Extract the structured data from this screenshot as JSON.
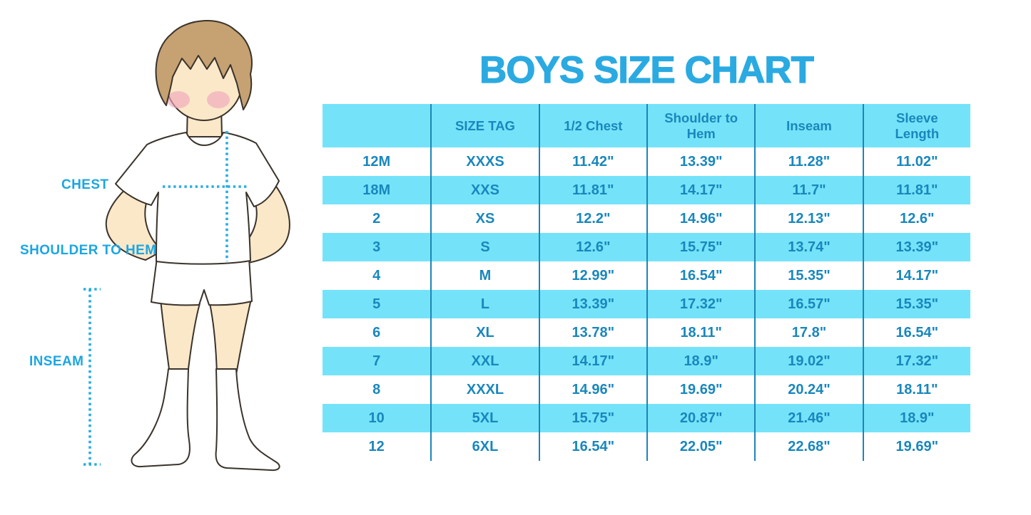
{
  "title": "BOYS SIZE CHART",
  "figure": {
    "alt": "boy-body-outline-with-measurement-guides",
    "labels": {
      "chest": "CHEST",
      "shoulder_to_hem": "SHOULDER TO HEM",
      "inseam": "INSEAM"
    }
  },
  "colors": {
    "title": "#2BAAE2",
    "label": "#1BA6E2",
    "table_text": "#1987BC",
    "band": "#74E3F9",
    "grid_line": "#1D85B8",
    "dotted_line": "#29ACE3"
  },
  "chart_data": {
    "type": "table",
    "title": "BOYS SIZE CHART",
    "columns": [
      "",
      "SIZE TAG",
      "1/2 Chest",
      "Shoulder to Hem",
      "Inseam",
      "Sleeve Length"
    ],
    "rows": [
      [
        "12M",
        "XXXS",
        "11.42\"",
        "13.39\"",
        "11.28\"",
        "11.02\""
      ],
      [
        "18M",
        "XXS",
        "11.81\"",
        "14.17\"",
        "11.7\"",
        "11.81\""
      ],
      [
        "2",
        "XS",
        "12.2\"",
        "14.96\"",
        "12.13\"",
        "12.6\""
      ],
      [
        "3",
        "S",
        "12.6\"",
        "15.75\"",
        "13.74\"",
        "13.39\""
      ],
      [
        "4",
        "M",
        "12.99\"",
        "16.54\"",
        "15.35\"",
        "14.17\""
      ],
      [
        "5",
        "L",
        "13.39\"",
        "17.32\"",
        "16.57\"",
        "15.35\""
      ],
      [
        "6",
        "XL",
        "13.78\"",
        "18.11\"",
        "17.8\"",
        "16.54\""
      ],
      [
        "7",
        "XXL",
        "14.17\"",
        "18.9\"",
        "19.02\"",
        "17.32\""
      ],
      [
        "8",
        "XXXL",
        "14.96\"",
        "19.69\"",
        "20.24\"",
        "18.11\""
      ],
      [
        "10",
        "5XL",
        "15.75\"",
        "20.87\"",
        "21.46\"",
        "18.9\""
      ],
      [
        "12",
        "6XL",
        "16.54\"",
        "22.05\"",
        "22.68\"",
        "19.69\""
      ]
    ],
    "measurement_labels": [
      "CHEST",
      "SHOULDER TO HEM",
      "INSEAM"
    ],
    "row_striping": [
      "white",
      "cyan"
    ],
    "legend_position": "none",
    "grid": "vertical-lines-only"
  }
}
